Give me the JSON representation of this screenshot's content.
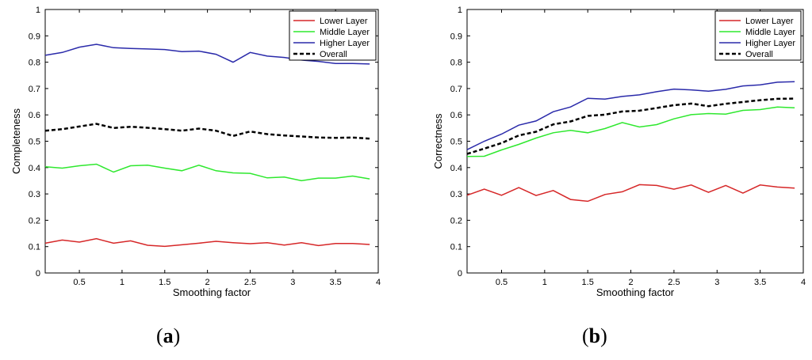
{
  "panels": [
    {
      "label_open": "(",
      "label_letter": "a",
      "label_close": ")"
    },
    {
      "label_open": "(",
      "label_letter": "b",
      "label_close": ")"
    }
  ],
  "chart_data": [
    {
      "type": "line",
      "title": "",
      "xlabel": "Smoothing factor",
      "ylabel": "Completeness",
      "xlim": [
        0.1,
        4
      ],
      "ylim": [
        0,
        1
      ],
      "xticks": [
        0.5,
        1,
        1.5,
        2,
        2.5,
        3,
        3.5,
        4
      ],
      "xtick_labels": [
        "0.5",
        "1",
        "1.5",
        "2",
        "2.5",
        "3",
        "3.5",
        "4"
      ],
      "yticks": [
        0,
        0.1,
        0.2,
        0.3,
        0.4,
        0.5,
        0.6,
        0.7,
        0.8,
        0.9,
        1
      ],
      "ytick_labels": [
        "0",
        "0.1",
        "0.2",
        "0.3",
        "0.4",
        "0.5",
        "0.6",
        "0.7",
        "0.8",
        "0.9",
        "1"
      ],
      "grid": false,
      "legend_position": "top-right",
      "x": [
        0.1,
        0.3,
        0.5,
        0.7,
        0.9,
        1.1,
        1.3,
        1.5,
        1.7,
        1.9,
        2.1,
        2.3,
        2.5,
        2.7,
        2.9,
        3.1,
        3.3,
        3.5,
        3.7,
        3.9
      ],
      "series": [
        {
          "name": "Lower Layer",
          "color": "#d62728",
          "dash": "solid",
          "values": [
            0.113,
            0.125,
            0.117,
            0.13,
            0.113,
            0.122,
            0.105,
            0.101,
            0.107,
            0.113,
            0.12,
            0.115,
            0.111,
            0.115,
            0.106,
            0.115,
            0.104,
            0.112,
            0.112,
            0.108
          ]
        },
        {
          "name": "Middle Layer",
          "color": "#2ee82e",
          "dash": "solid",
          "values": [
            0.403,
            0.398,
            0.407,
            0.413,
            0.383,
            0.407,
            0.409,
            0.398,
            0.388,
            0.409,
            0.388,
            0.38,
            0.378,
            0.361,
            0.364,
            0.35,
            0.36,
            0.36,
            0.368,
            0.357
          ]
        },
        {
          "name": "Higher Layer",
          "color": "#2a2aaa",
          "dash": "solid",
          "values": [
            0.826,
            0.837,
            0.857,
            0.868,
            0.855,
            0.852,
            0.85,
            0.848,
            0.84,
            0.842,
            0.83,
            0.8,
            0.837,
            0.823,
            0.818,
            0.808,
            0.803,
            0.795,
            0.795,
            0.793
          ]
        },
        {
          "name": "Overall",
          "color": "#000000",
          "dash": "dashed",
          "values": [
            0.54,
            0.546,
            0.556,
            0.566,
            0.55,
            0.555,
            0.551,
            0.546,
            0.54,
            0.548,
            0.54,
            0.52,
            0.537,
            0.527,
            0.522,
            0.518,
            0.514,
            0.513,
            0.514,
            0.51
          ]
        }
      ]
    },
    {
      "type": "line",
      "title": "",
      "xlabel": "Smoothing factor",
      "ylabel": "Correctness",
      "xlim": [
        0.1,
        4
      ],
      "ylim": [
        0,
        1
      ],
      "xticks": [
        0.5,
        1,
        1.5,
        2,
        2.5,
        3,
        3.5,
        4
      ],
      "xtick_labels": [
        "0.5",
        "1",
        "1.5",
        "2",
        "2.5",
        "3",
        "3.5",
        "4"
      ],
      "yticks": [
        0,
        0.1,
        0.2,
        0.3,
        0.4,
        0.5,
        0.6,
        0.7,
        0.8,
        0.9,
        1
      ],
      "ytick_labels": [
        "0",
        "0.1",
        "0.2",
        "0.3",
        "0.4",
        "0.5",
        "0.6",
        "0.7",
        "0.8",
        "0.9",
        "1"
      ],
      "grid": false,
      "legend_position": "top-right",
      "x": [
        0.1,
        0.3,
        0.5,
        0.7,
        0.9,
        1.1,
        1.3,
        1.5,
        1.7,
        1.9,
        2.1,
        2.3,
        2.5,
        2.7,
        2.9,
        3.1,
        3.3,
        3.5,
        3.7,
        3.9
      ],
      "series": [
        {
          "name": "Lower Layer",
          "color": "#d62728",
          "dash": "solid",
          "values": [
            0.295,
            0.318,
            0.295,
            0.324,
            0.294,
            0.313,
            0.279,
            0.272,
            0.298,
            0.308,
            0.335,
            0.332,
            0.318,
            0.334,
            0.306,
            0.332,
            0.303,
            0.334,
            0.326,
            0.322
          ]
        },
        {
          "name": "Middle Layer",
          "color": "#2ee82e",
          "dash": "solid",
          "values": [
            0.442,
            0.443,
            0.467,
            0.488,
            0.512,
            0.532,
            0.541,
            0.532,
            0.548,
            0.571,
            0.554,
            0.563,
            0.585,
            0.601,
            0.605,
            0.603,
            0.617,
            0.62,
            0.63,
            0.627
          ]
        },
        {
          "name": "Higher Layer",
          "color": "#2a2aaa",
          "dash": "solid",
          "values": [
            0.468,
            0.5,
            0.527,
            0.561,
            0.577,
            0.612,
            0.63,
            0.663,
            0.66,
            0.67,
            0.676,
            0.688,
            0.698,
            0.695,
            0.69,
            0.697,
            0.71,
            0.714,
            0.724,
            0.726
          ]
        },
        {
          "name": "Overall",
          "color": "#000000",
          "dash": "dashed",
          "values": [
            0.452,
            0.472,
            0.493,
            0.522,
            0.536,
            0.564,
            0.575,
            0.596,
            0.601,
            0.613,
            0.616,
            0.626,
            0.637,
            0.643,
            0.633,
            0.642,
            0.649,
            0.656,
            0.661,
            0.662
          ]
        }
      ]
    }
  ]
}
